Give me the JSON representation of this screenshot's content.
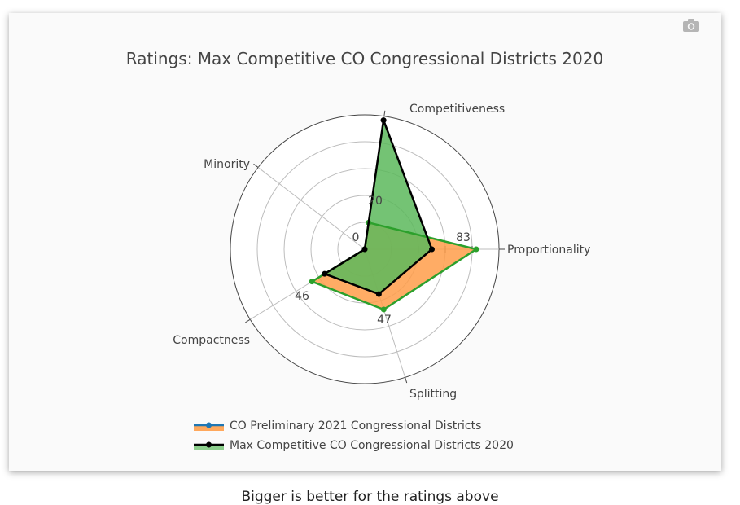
{
  "chart_data": {
    "type": "radar",
    "title": "Ratings: Max Competitive CO Congressional Districts 2020",
    "axes": [
      "Competitiveness",
      "Proportionality",
      "Splitting",
      "Compactness",
      "Minority"
    ],
    "range": [
      0,
      100
    ],
    "series": [
      {
        "name": "CO Preliminary 2021 Congressional Districts",
        "values": [
          20,
          83,
          47,
          46,
          0
        ],
        "fill": "#ff9e4a",
        "line": "#2ca02c",
        "marker": "#2ca02c"
      },
      {
        "name": "Max Competitive CO Congressional Districts 2020",
        "values": [
          97,
          50,
          35,
          35,
          0
        ],
        "fill": "#5cb85c",
        "line": "#000000",
        "marker": "#000000"
      }
    ],
    "value_labels": [
      {
        "axis": "Competitiveness",
        "text": "20"
      },
      {
        "axis": "Proportionality",
        "text": "83"
      },
      {
        "axis": "Splitting",
        "text": "47"
      },
      {
        "axis": "Compactness",
        "text": "46"
      },
      {
        "axis": "Minority",
        "text": "0"
      }
    ],
    "legend_position": "bottom-center"
  },
  "legend": [
    {
      "label": "CO Preliminary 2021 Congressional Districts",
      "swatch_fill": "#ff9e4a",
      "swatch_line": "#1f77b4"
    },
    {
      "label": "Max Competitive CO Congressional Districts 2020",
      "swatch_fill": "#7fc97f",
      "swatch_line": "#000000"
    }
  ],
  "footer_note": "Bigger is better for the ratings above"
}
